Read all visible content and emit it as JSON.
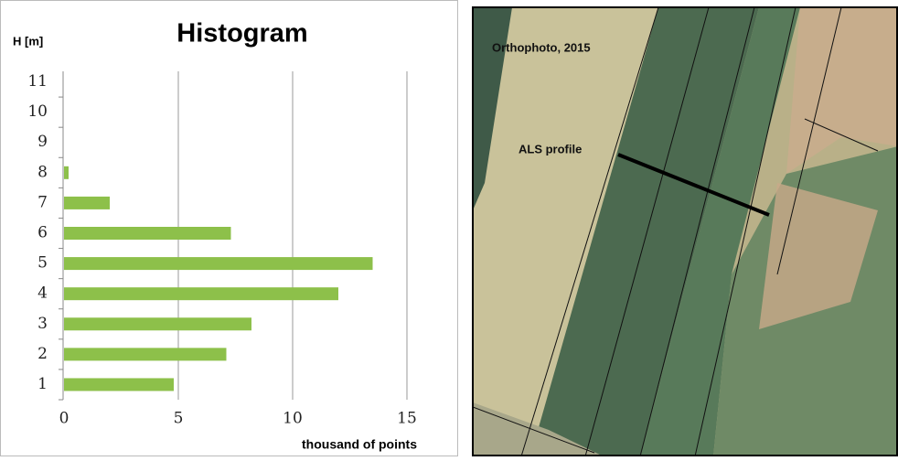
{
  "chart_data": {
    "type": "hbar",
    "title": "Histogram",
    "y_label": "H [m]",
    "x_label": "thousand of points",
    "categories": [
      1,
      2,
      3,
      4,
      5,
      6,
      7,
      8,
      9,
      10,
      11
    ],
    "values": [
      4.8,
      7.1,
      8.2,
      12.0,
      13.5,
      7.3,
      2.0,
      0.2,
      0,
      0,
      0
    ],
    "color": "#8dc04a",
    "xlim": [
      0,
      15
    ],
    "xticks": [
      0,
      5,
      10,
      15
    ],
    "grid": true
  },
  "photo": {
    "title": "Orthophoto, 2015",
    "label": "ALS profile"
  }
}
